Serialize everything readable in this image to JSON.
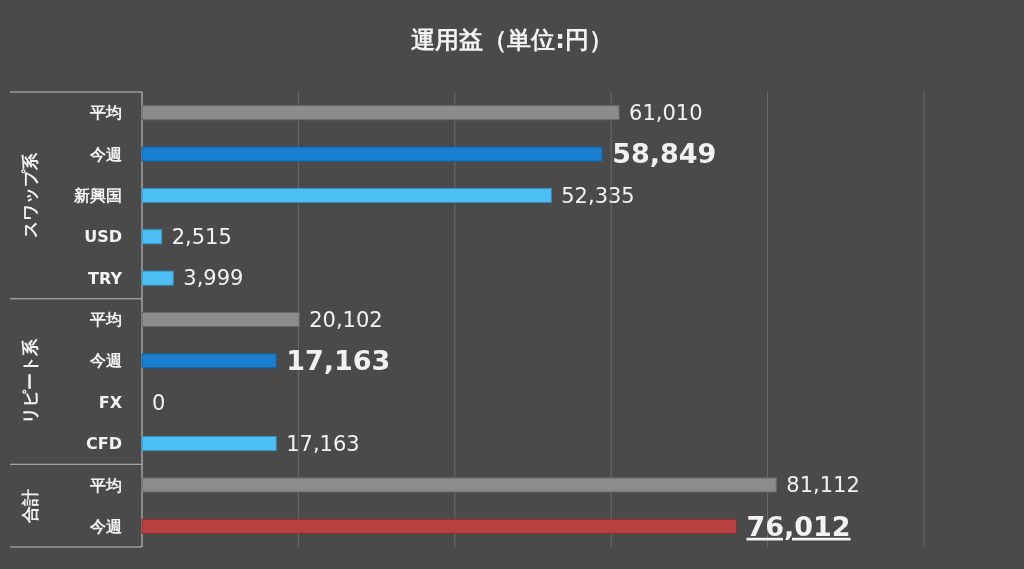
{
  "chart_data": {
    "type": "bar",
    "orientation": "horizontal",
    "title": "運用益（単位:円）",
    "categories": [
      "平均",
      "今週",
      "新興国",
      "USD",
      "TRY",
      "平均",
      "今週",
      "FX",
      "CFD",
      "平均",
      "今週"
    ],
    "values": [
      61010,
      58849,
      52335,
      2515,
      3999,
      20102,
      17163,
      0,
      17163,
      81112,
      76012
    ],
    "value_labels": [
      "61,010",
      "58,849",
      "52,335",
      "2,515",
      "3,999",
      "20,102",
      "17,163",
      "0",
      "17,163",
      "81,112",
      "76,012"
    ],
    "colors": [
      "#8c8c8c",
      "#1a7fd0",
      "#4cc0f5",
      "#4cc0f5",
      "#4cc0f5",
      "#8c8c8c",
      "#1a7fd0",
      "#4cc0f5",
      "#4cc0f5",
      "#8c8c8c",
      "#b84040"
    ],
    "tick_labels": "y",
    "grid": "x",
    "annotations": [
      "スワップ系",
      "リピート系",
      "合計"
    ]
  }
}
